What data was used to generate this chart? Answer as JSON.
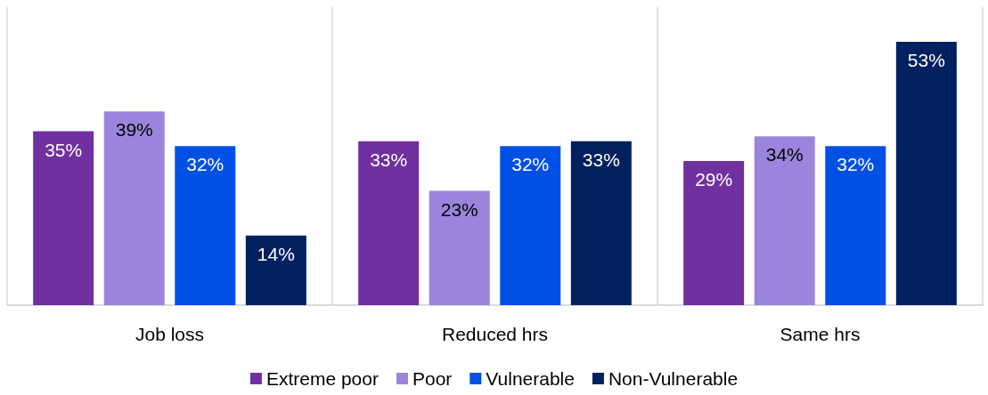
{
  "chart_data": {
    "type": "bar",
    "categories": [
      "Job loss",
      "Reduced hrs",
      "Same hrs"
    ],
    "series": [
      {
        "name": "Extreme poor",
        "color": "#7030a0",
        "values": [
          35,
          33,
          29
        ],
        "value_labels": [
          "35%",
          "33%",
          "29%"
        ]
      },
      {
        "name": "Poor",
        "color": "#9b85dc",
        "values": [
          39,
          23,
          34
        ],
        "value_labels": [
          "39%",
          "23%",
          "34%"
        ]
      },
      {
        "name": "Vulnerable",
        "color": "#0050e6",
        "values": [
          32,
          32,
          32
        ],
        "value_labels": [
          "32%",
          "32%",
          "32%"
        ]
      },
      {
        "name": "Non-Vulnerable",
        "color": "#002060",
        "values": [
          14,
          33,
          53
        ],
        "value_labels": [
          "14%",
          "33%",
          "53%"
        ]
      }
    ],
    "grid": "x",
    "legend": "bottom"
  }
}
